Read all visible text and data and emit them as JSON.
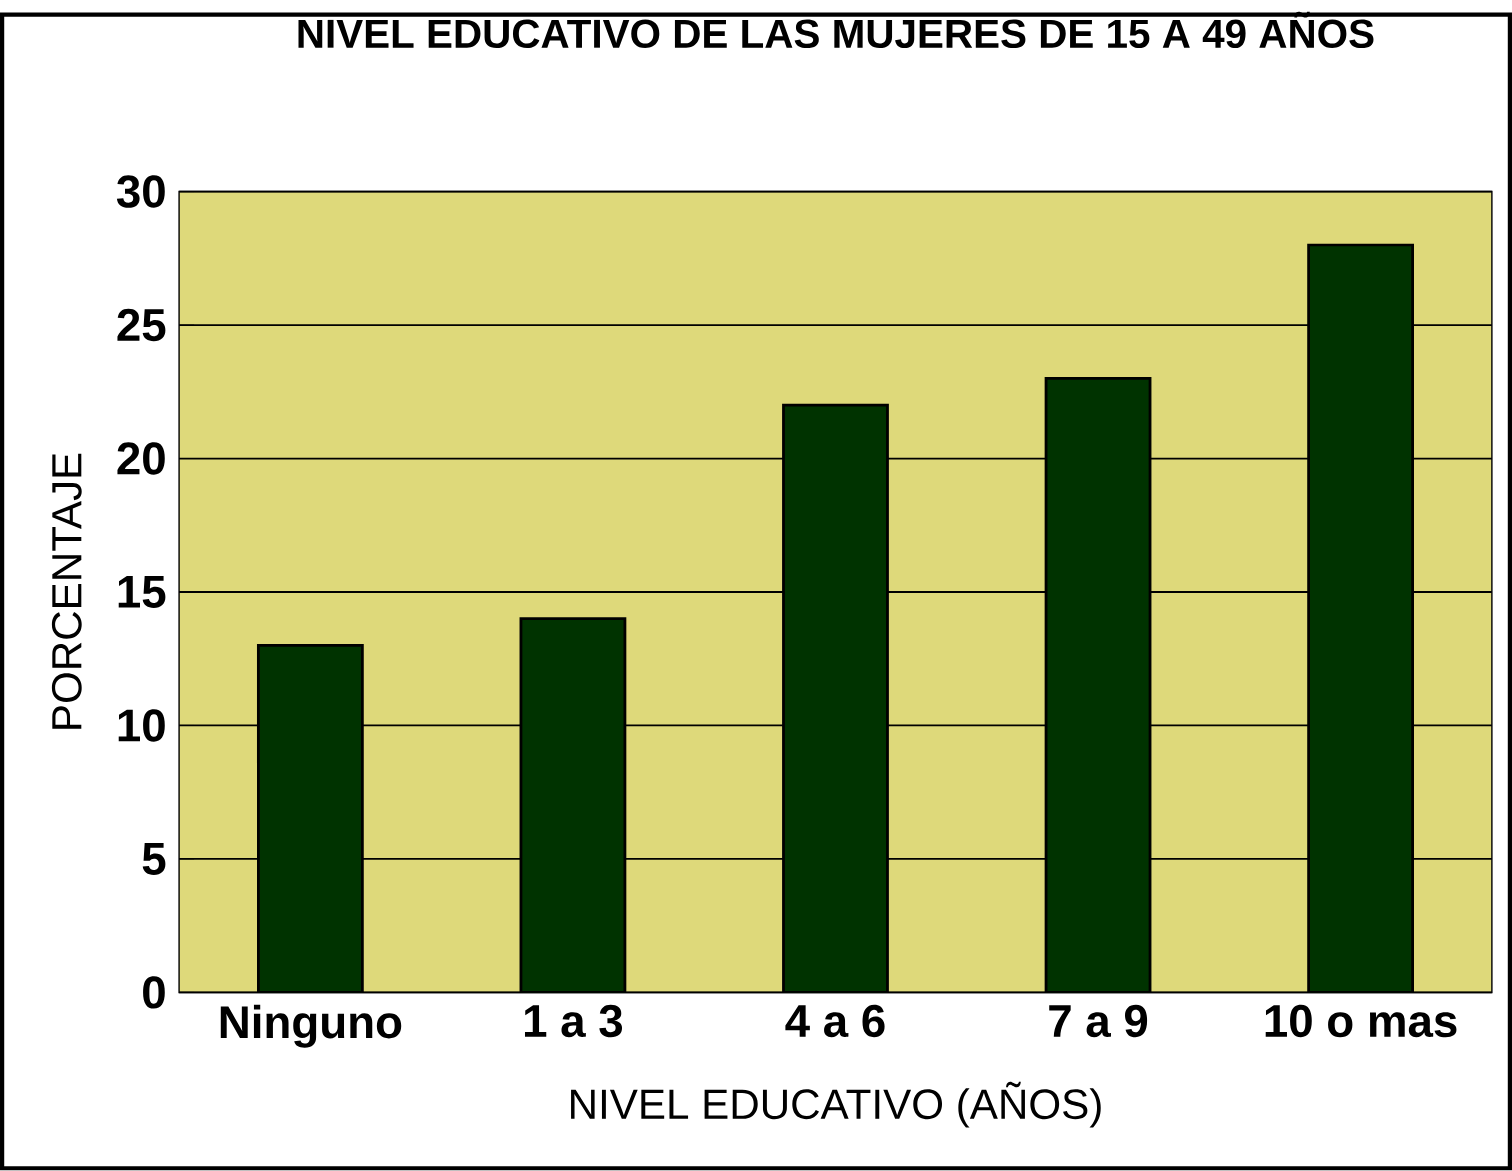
{
  "chart_data": {
    "type": "bar",
    "title": "NIVEL EDUCATIVO DE LAS MUJERES DE 15 A 49 AÑOS",
    "xlabel": "NIVEL EDUCATIVO (AÑOS)",
    "ylabel": "PORCENTAJE",
    "categories": [
      "Ninguno",
      "1 a 3",
      "4 a 6",
      "7 a 9",
      "10 o mas"
    ],
    "values": [
      13,
      14,
      22,
      23,
      28
    ],
    "color": "#003300",
    "ylim": [
      0,
      30
    ],
    "yticks": [
      0,
      5,
      10,
      15,
      20,
      25,
      30
    ],
    "grid": "y"
  }
}
